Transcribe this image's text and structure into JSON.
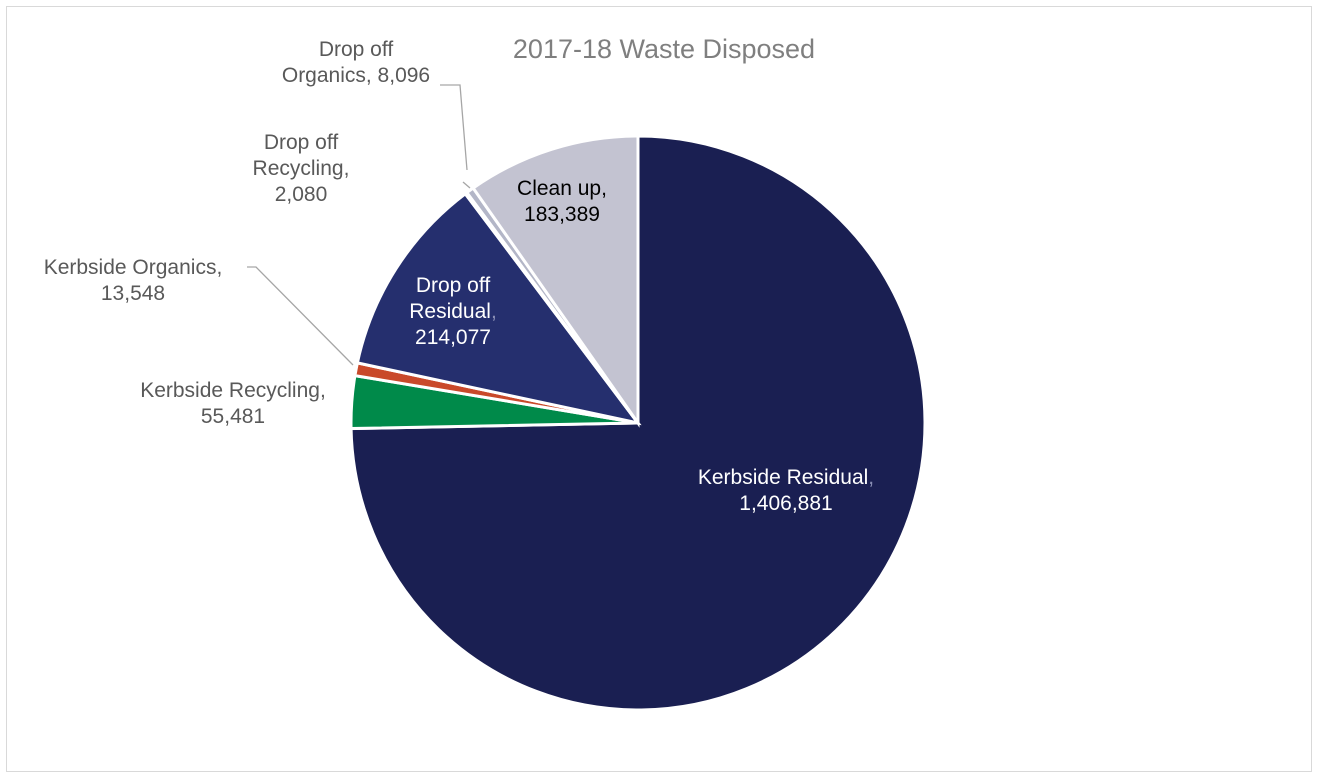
{
  "chart_data": {
    "type": "pie",
    "title": "2017-18 Waste Disposed",
    "slices": [
      {
        "name": "Kerbside Residual",
        "value": 1406881,
        "value_label": "1,406,881",
        "color": "#1a1f52"
      },
      {
        "name": "Kerbside Recycling",
        "value": 55481,
        "value_label": "55,481",
        "color": "#008a4a"
      },
      {
        "name": "Kerbside Organics",
        "value": 13548,
        "value_label": "13,548",
        "color": "#c9492a"
      },
      {
        "name": "Drop off Residual",
        "value": 214077,
        "value_label": "214,077",
        "color": "#252f6e"
      },
      {
        "name": "Drop off Recycling",
        "value": 2080,
        "value_label": "2,080",
        "color": "#3a3f7a"
      },
      {
        "name": "Drop off Organics",
        "value": 8096,
        "value_label": "8,096",
        "color": "#b3b6c7"
      },
      {
        "name": "Clean up",
        "value": 183389,
        "value_label": "183,389",
        "color": "#c3c3d1"
      }
    ]
  }
}
